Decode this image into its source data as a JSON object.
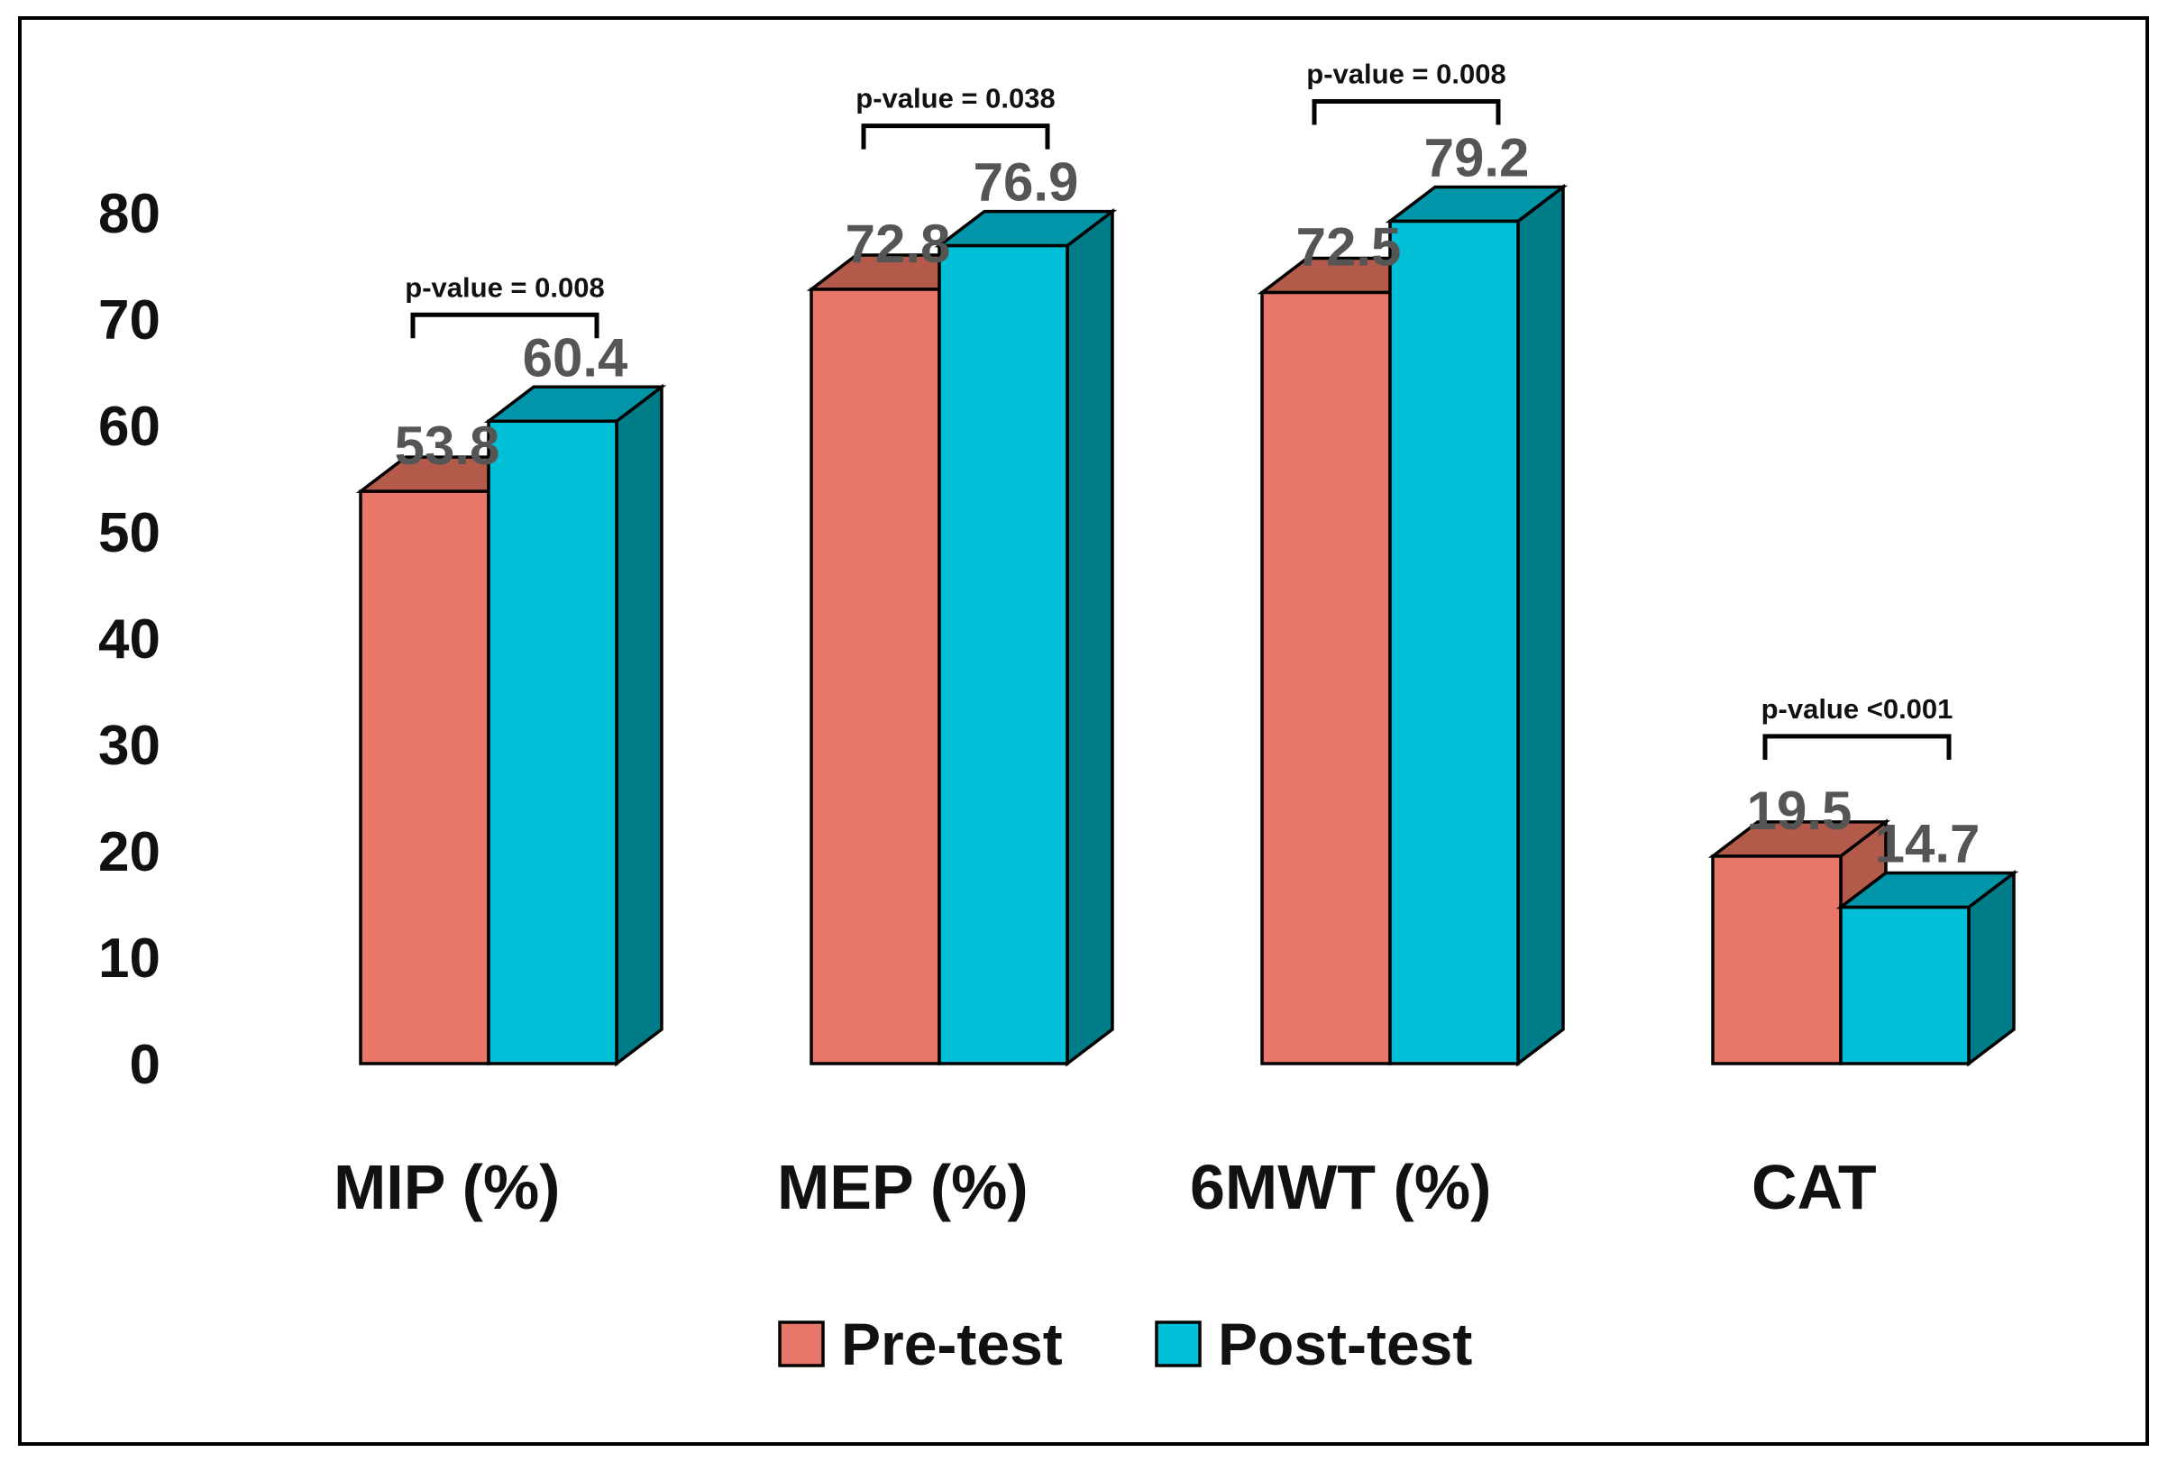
{
  "chart_data": {
    "type": "bar",
    "style": "3d-clustered-columns",
    "title": "",
    "xlabel": "",
    "ylabel": "",
    "ylim": [
      0,
      80
    ],
    "yticks": [
      0,
      10,
      20,
      30,
      40,
      50,
      60,
      70,
      80
    ],
    "grid": false,
    "categories": [
      "MIP (%)",
      "MEP (%)",
      "6MWT (%)",
      "CAT"
    ],
    "series": [
      {
        "name": "Pre-test",
        "values": [
          53.8,
          72.8,
          72.5,
          19.5
        ],
        "labels": [
          "53.8",
          "72.8",
          "72.5",
          "19.5"
        ]
      },
      {
        "name": "Post-test",
        "values": [
          60.4,
          76.9,
          79.2,
          14.7
        ],
        "labels": [
          "60.4",
          "76.9",
          "79.2",
          "14.7"
        ]
      }
    ],
    "annotations": [
      "p-value = 0.008",
      "p-value = 0.038",
      "p-value = 0.008",
      "p-value <0.001"
    ],
    "legend_position": "bottom-center"
  },
  "colors": {
    "pre_front": "#e8776a",
    "pre_top": "#b35a4a",
    "post_front": "#00bfd6",
    "post_top": "#0095a8",
    "post_side": "#007c88"
  }
}
